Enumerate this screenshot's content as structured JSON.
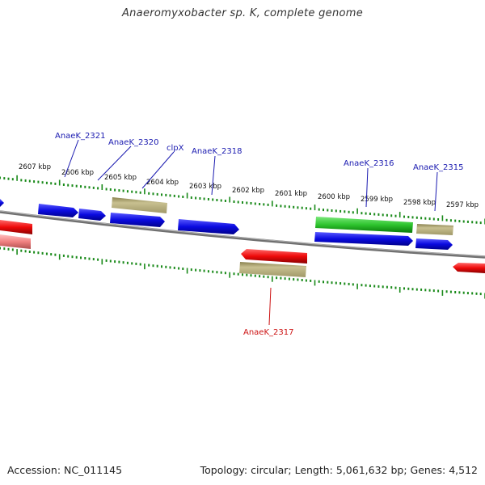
{
  "title": "Anaeromyxobacter sp. K, complete genome",
  "footer": {
    "accession": "Accession: NC_011145",
    "topology": "Topology: circular; Length: 5,061,632 bp; Genes: 4,512"
  },
  "scale_labels": [
    "2607 kbp",
    "2606 kbp",
    "2605 kbp",
    "2604 kbp",
    "2603 kbp",
    "2602 kbp",
    "2601 kbp",
    "2600 kbp",
    "2599 kbp",
    "2598 kbp",
    "2597 kbp"
  ],
  "gene_labels": [
    {
      "text": "AnaeK_2321",
      "color": "#1a1ab0"
    },
    {
      "text": "AnaeK_2320",
      "color": "#1a1ab0"
    },
    {
      "text": "clpX",
      "color": "#1a1ab0"
    },
    {
      "text": "AnaeK_2318",
      "color": "#1a1ab0"
    },
    {
      "text": "AnaeK_2316",
      "color": "#1a1ab0"
    },
    {
      "text": "AnaeK_2315",
      "color": "#1a1ab0"
    },
    {
      "text": "AnaeK_2317",
      "color": "#cc1111"
    }
  ],
  "colors": {
    "forward_gene": "#0a0ae0",
    "reverse_gene": "#ee0a0a",
    "rna_gene": "#b8b078",
    "highlight_gene": "#2ec42e",
    "backbone": "#808080",
    "tick": "#1a8a1a"
  }
}
